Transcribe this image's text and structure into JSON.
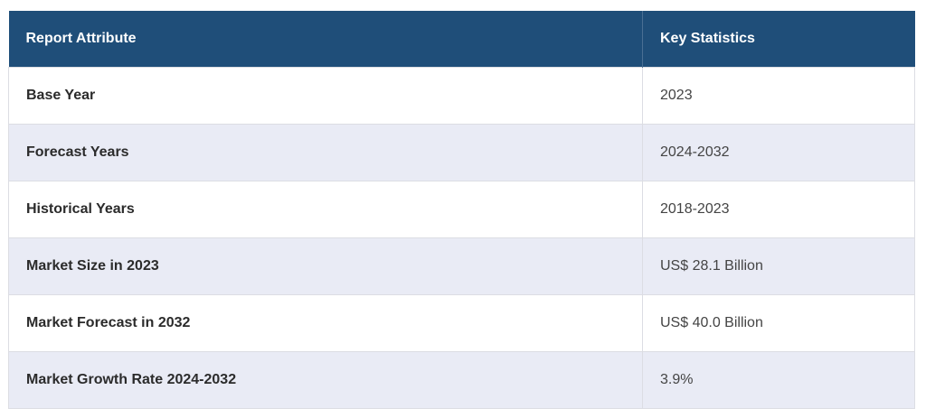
{
  "table": {
    "header": [
      "Report Attribute",
      "Key Statistics"
    ],
    "rows": [
      [
        "Base Year",
        "2023"
      ],
      [
        "Forecast Years",
        "2024-2032"
      ],
      [
        "Historical Years",
        "2018-2023"
      ],
      [
        "Market Size in 2023",
        "US$ 28.1 Billion"
      ],
      [
        "Market Forecast in 2032",
        "US$ 40.0 Billion"
      ],
      [
        "Market Growth Rate 2024-2032",
        "3.9%"
      ]
    ]
  }
}
